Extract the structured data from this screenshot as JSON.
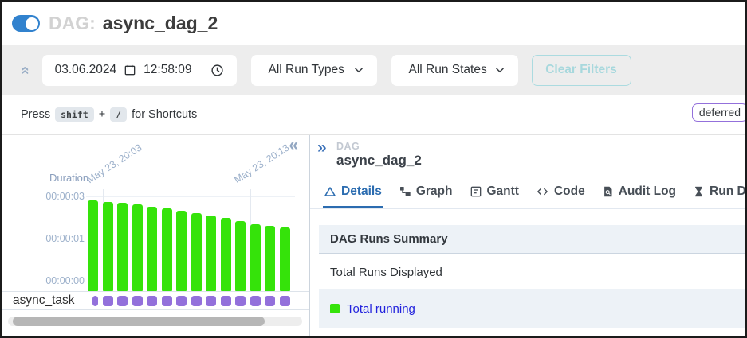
{
  "header": {
    "toggle_state": "on",
    "dag_label": "DAG:",
    "dag_name": "async_dag_2"
  },
  "filter_bar": {
    "date": "03.06.2024",
    "time": "12:58:09",
    "run_types_selected": "All Run Types",
    "run_states_selected": "All Run States",
    "clear_filters_label": "Clear Filters"
  },
  "shortcuts": {
    "press": "Press",
    "shift_key": "shift",
    "plus": "+",
    "slash_key": "/",
    "suffix": "for Shortcuts"
  },
  "status_badge": "deferred",
  "left_panel": {
    "collapse_icon": "«",
    "task_label": "async_task"
  },
  "chart_data": {
    "type": "bar",
    "title": "Duration",
    "ylabel": "Duration",
    "y_ticks": [
      "00:00:03",
      "00:00:01",
      "00:00:00"
    ],
    "x_ticks": [
      {
        "label": "May 23, 20:03",
        "bar_index": 2
      },
      {
        "label": "May 23, 20:13",
        "bar_index": 12
      }
    ],
    "bar_count": 14,
    "series": [
      {
        "name": "dag run duration",
        "state": "running",
        "color": "#35e30a",
        "values_sec": [
          2.81,
          2.74,
          2.7,
          2.62,
          2.51,
          2.43,
          2.32,
          2.21,
          2.09,
          1.98,
          1.83,
          1.68,
          1.6,
          1.53
        ]
      }
    ],
    "task_rows": [
      {
        "task_id": "async_task",
        "instance_count": 14,
        "state": "deferred",
        "color": "#9370DB"
      }
    ],
    "grid": true,
    "legend_position": "none"
  },
  "right_panel": {
    "expand_icon": "»",
    "dag_label": "DAG",
    "dag_name": "async_dag_2",
    "tabs": [
      {
        "label": "Details",
        "icon": "triangle-icon",
        "active": true
      },
      {
        "label": "Graph",
        "icon": "graph-icon",
        "active": false
      },
      {
        "label": "Gantt",
        "icon": "gantt-icon",
        "active": false
      },
      {
        "label": "Code",
        "icon": "code-icon",
        "active": false
      },
      {
        "label": "Audit Log",
        "icon": "audit-log-icon",
        "active": false
      },
      {
        "label": "Run D",
        "icon": "hourglass-icon",
        "active": false
      }
    ],
    "summary": {
      "title": "DAG Runs Summary",
      "total_runs_label": "Total Runs Displayed",
      "legend_running_label": "Total running"
    }
  },
  "colors": {
    "accent_blue": "#3182ce",
    "tab_active_blue": "#2b6cb0",
    "running_green": "#35e30a",
    "deferred_purple": "#9370DB",
    "clear_filters_teal": "#a7d8dd",
    "summary_header_bg": "#edf2f7",
    "chart_axis_text": "#9db1cb",
    "legend_link_blue": "#2222dd"
  }
}
